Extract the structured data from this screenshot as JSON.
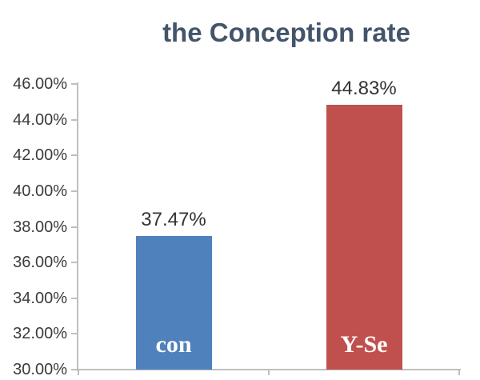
{
  "title": "the Conception rate",
  "colors": {
    "title_text": "#44546A",
    "bar_con": "#4F81BD",
    "bar_y_se": "#C0504D",
    "axis_line": "#BFBFBF",
    "tick_label_text": "#3B3B3B",
    "value_label_text": "#333333",
    "bar_label_text": "#FFFFFF",
    "background": "#FFFFFF"
  },
  "chart_data": {
    "type": "bar",
    "title": "the Conception rate",
    "categories": [
      "con",
      "Y-Se"
    ],
    "values": [
      37.47,
      44.83
    ],
    "value_labels": [
      "37.47%",
      "44.83%"
    ],
    "bar_colors": [
      "#4F81BD",
      "#C0504D"
    ],
    "xlabel": "",
    "ylabel": "",
    "ylim": [
      30,
      46
    ],
    "ytick_step": 2,
    "ytick_labels": [
      "30.00%",
      "32.00%",
      "34.00%",
      "36.00%",
      "38.00%",
      "40.00%",
      "42.00%",
      "44.00%",
      "46.00%"
    ],
    "grid": false,
    "legend": false
  }
}
